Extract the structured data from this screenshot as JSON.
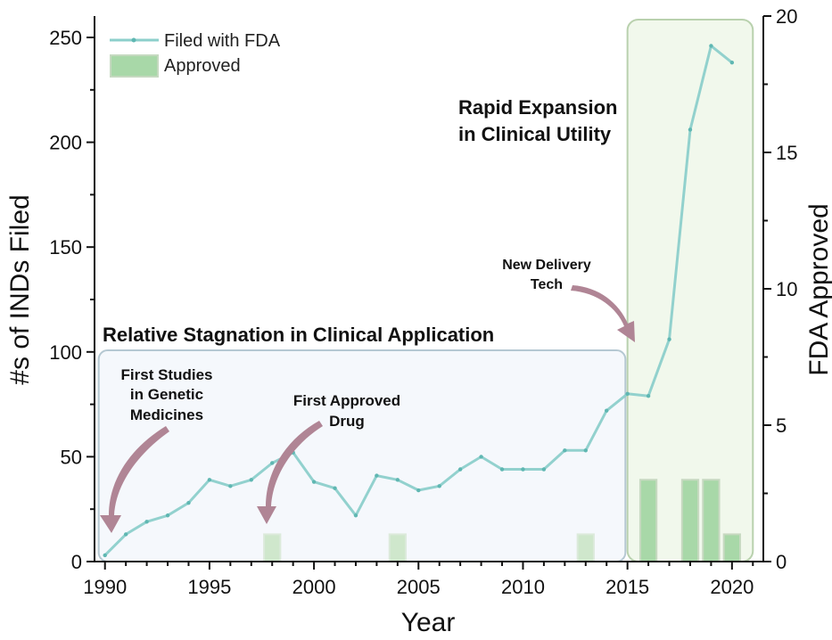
{
  "chart_data": {
    "type": "bar+line",
    "x_axis": {
      "label": "Year",
      "range": [
        1989.5,
        2021.5
      ],
      "ticks": [
        1990,
        1995,
        2000,
        2005,
        2010,
        2015,
        2020
      ]
    },
    "y_left": {
      "label": "#s of INDs Filed",
      "range": [
        0,
        260
      ],
      "ticks": [
        0,
        50,
        100,
        150,
        200,
        250
      ]
    },
    "y_right": {
      "label": "FDA Approved",
      "range": [
        0,
        20
      ],
      "ticks": [
        0,
        5,
        10,
        15,
        20
      ]
    },
    "series": [
      {
        "name": "Filed with FDA",
        "type": "line",
        "axis": "left",
        "color": "#8ccfcb",
        "x": [
          1990,
          1991,
          1992,
          1993,
          1994,
          1995,
          1996,
          1997,
          1998,
          1999,
          2000,
          2001,
          2002,
          2003,
          2004,
          2005,
          2006,
          2007,
          2008,
          2009,
          2010,
          2011,
          2012,
          2013,
          2014,
          2015,
          2016,
          2017,
          2018,
          2019,
          2020
        ],
        "values": [
          3,
          13,
          19,
          22,
          28,
          39,
          36,
          39,
          47,
          52,
          38,
          35,
          22,
          41,
          39,
          34,
          36,
          44,
          50,
          44,
          44,
          44,
          53,
          53,
          72,
          80,
          79,
          106,
          206,
          246,
          238
        ]
      },
      {
        "name": "Approved",
        "type": "bar",
        "axis": "right",
        "color": "#a8d8a8",
        "x": [
          1998,
          2004,
          2013,
          2016,
          2018,
          2019,
          2020
        ],
        "values": [
          1,
          1,
          1,
          3,
          3,
          3,
          1
        ]
      }
    ],
    "legend": {
      "position": "top-left",
      "entries": [
        "Filed with FDA",
        "Approved"
      ]
    },
    "regions": [
      {
        "label": "Relative Stagnation in Clinical Application",
        "from": 1990,
        "to": 2015
      },
      {
        "label_lines": [
          "Rapid Expansion",
          "in Clinical Utility"
        ],
        "from": 2015,
        "to": 2021
      }
    ],
    "annotations": [
      {
        "lines": [
          "First Studies",
          "in Genetic",
          "Medicines"
        ],
        "points_to": 1990
      },
      {
        "lines": [
          "First Approved",
          "Drug"
        ],
        "points_to": 1998
      },
      {
        "lines": [
          "New Delivery",
          "Tech"
        ],
        "points_to": 2015
      }
    ]
  }
}
